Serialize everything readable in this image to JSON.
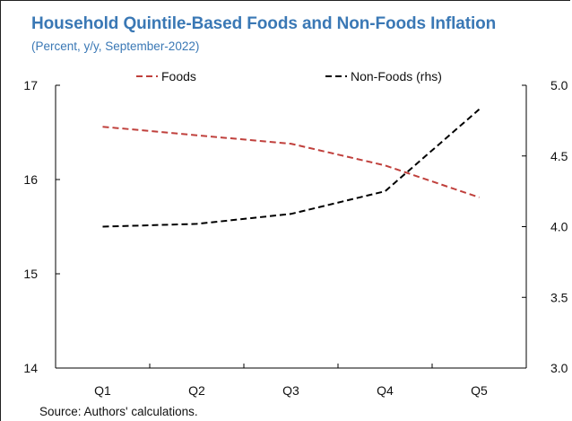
{
  "title": "Household Quintile-Based Foods and Non-Foods Inflation",
  "subtitle": "(Percent, y/y, September-2022)",
  "source": "Source: Authors' calculations.",
  "chart_data": {
    "type": "line",
    "categories": [
      "Q1",
      "Q2",
      "Q3",
      "Q4",
      "Q5"
    ],
    "series": [
      {
        "name": "Foods",
        "axis": "left",
        "color": "#c0403c",
        "dash": "dashed",
        "values": [
          16.56,
          16.47,
          16.38,
          16.15,
          15.81
        ]
      },
      {
        "name": "Non-Foods (rhs)",
        "axis": "right",
        "color": "#000000",
        "dash": "dashed",
        "values": [
          4.0,
          4.02,
          4.09,
          4.25,
          4.83
        ]
      }
    ],
    "ylim_left": [
      14,
      17
    ],
    "yticks_left": [
      "14",
      "15",
      "16",
      "17"
    ],
    "ylim_right": [
      3.0,
      5.0
    ],
    "yticks_right": [
      "3.0",
      "3.5",
      "4.0",
      "4.5",
      "5.0"
    ],
    "legend_position": "top",
    "grid": false
  }
}
